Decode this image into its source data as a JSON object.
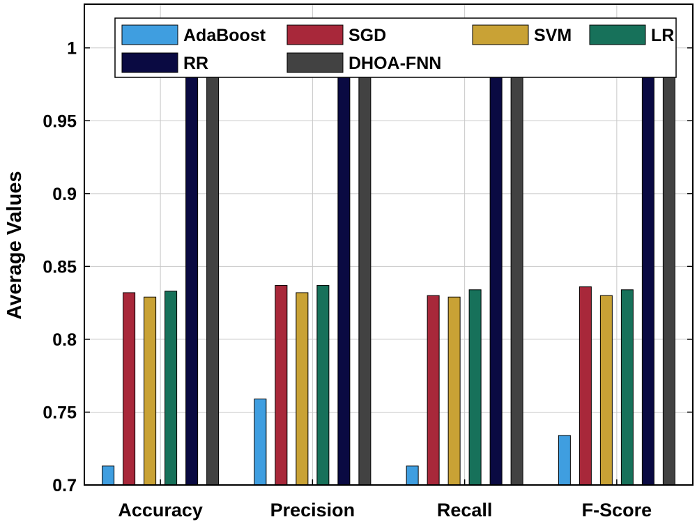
{
  "chart_data": {
    "type": "bar",
    "title": "",
    "xlabel": "",
    "ylabel": "Average Values",
    "ylim": [
      0.7,
      1.03
    ],
    "yticks": [
      "0.7",
      "0.75",
      "0.8",
      "0.85",
      "0.9",
      "0.95",
      "1"
    ],
    "grid": true,
    "legend_position": "top",
    "categories": [
      "Accuracy",
      "Precision",
      "Recall",
      "F-Score"
    ],
    "series": [
      {
        "name": "AdaBoost",
        "color": "#3f9ee0",
        "values": [
          0.713,
          0.759,
          0.713,
          0.734
        ]
      },
      {
        "name": "SGD",
        "color": "#a8283a",
        "values": [
          0.832,
          0.837,
          0.83,
          0.836
        ]
      },
      {
        "name": "SVM",
        "color": "#c9a235",
        "values": [
          0.829,
          0.832,
          0.829,
          0.83
        ]
      },
      {
        "name": "LR",
        "color": "#17715a",
        "values": [
          0.833,
          0.837,
          0.834,
          0.834
        ]
      },
      {
        "name": "RR",
        "color": "#0a0a42",
        "values": [
          0.996,
          0.996,
          0.996,
          0.996
        ]
      },
      {
        "name": "DHOA-FNN",
        "color": "#424242",
        "values": [
          0.996,
          0.997,
          0.996,
          0.996
        ]
      }
    ]
  }
}
